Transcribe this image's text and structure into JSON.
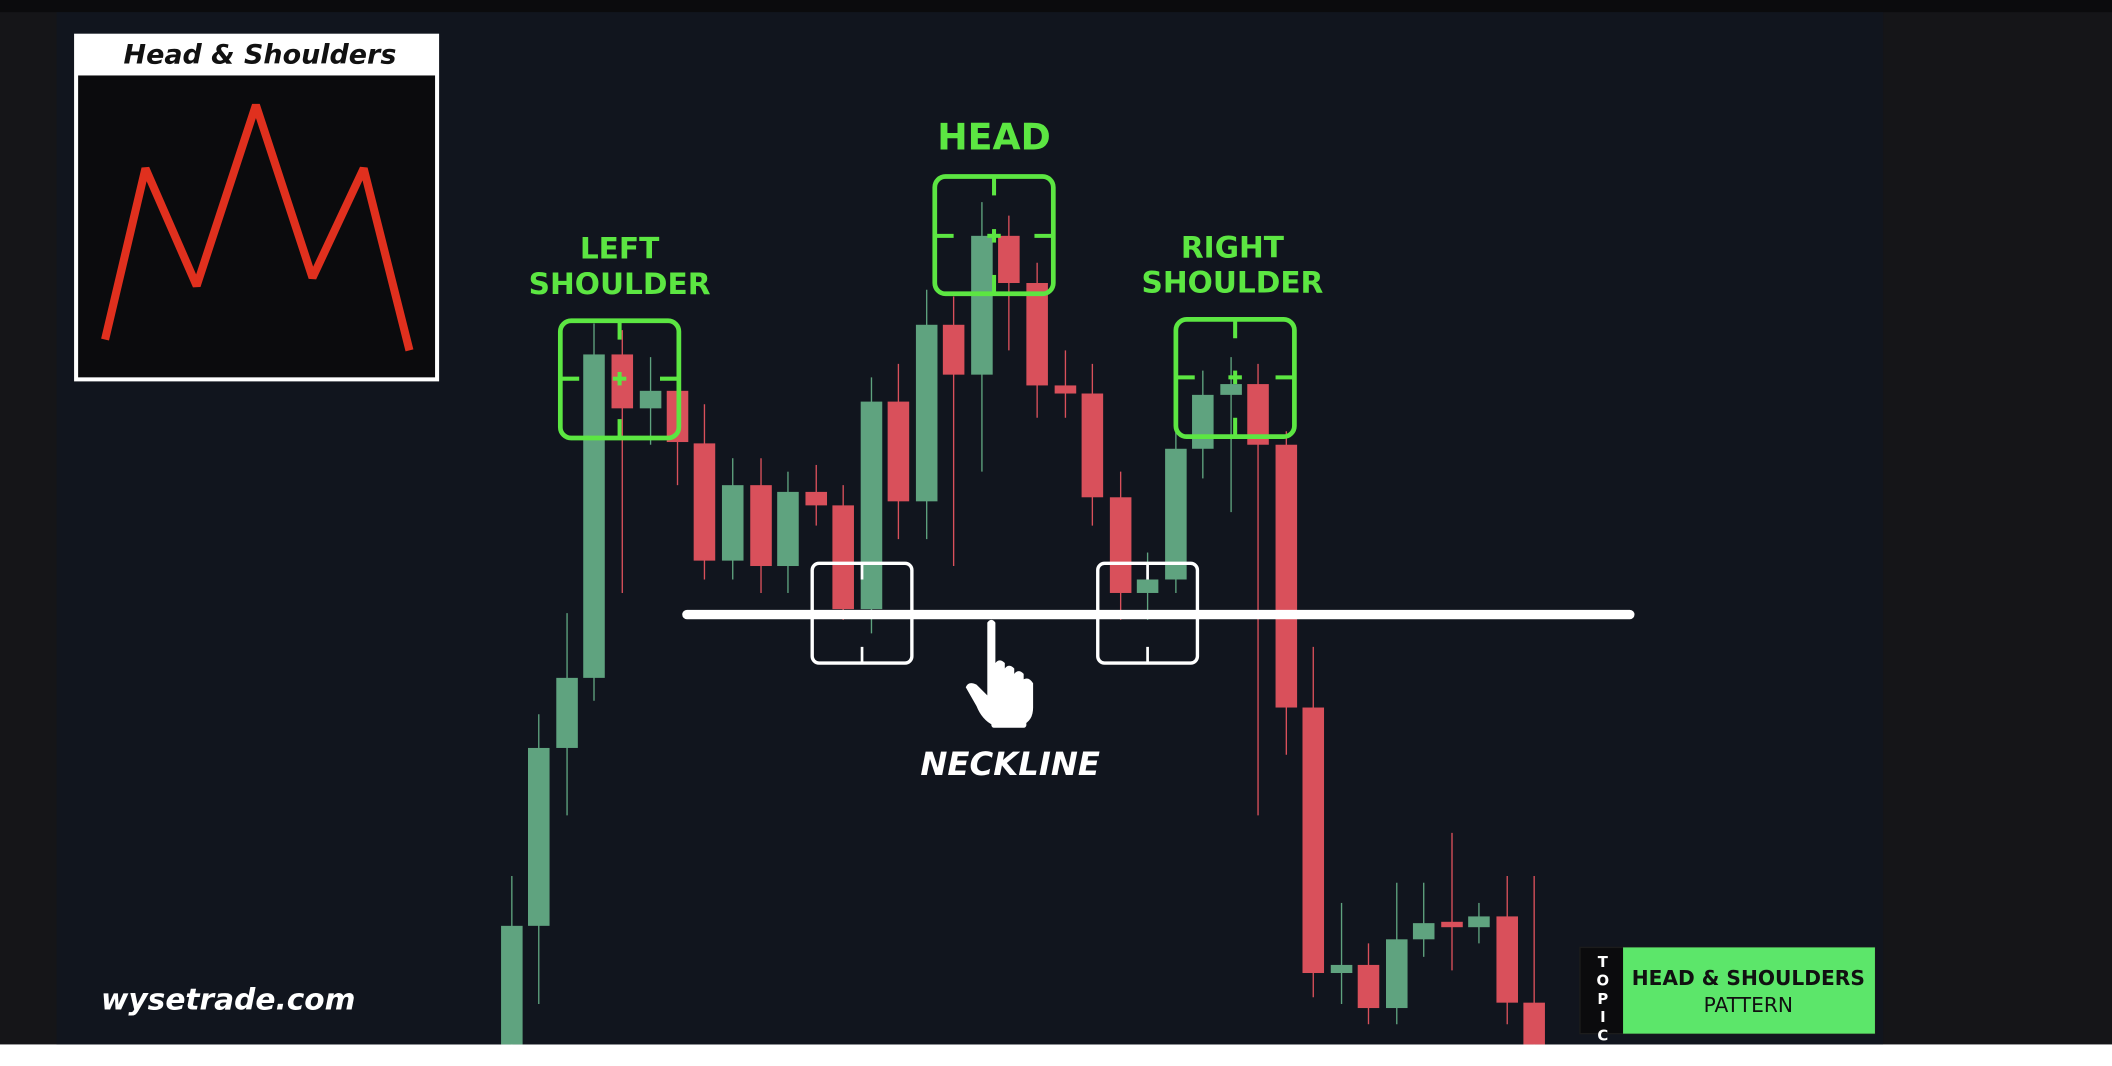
{
  "inset": {
    "title": "Head & Shoulders"
  },
  "labels": {
    "head": "HEAD",
    "left_shoulder": [
      "LEFT",
      "SHOULDER"
    ],
    "right_shoulder": [
      "RIGHT",
      "SHOULDER"
    ],
    "neckline": "NECKLINE"
  },
  "watermark": "wysetrade.com",
  "topic_badge": {
    "tag": "TOPIC",
    "title": [
      "HEAD & SHOULDERS",
      "PATTERN"
    ]
  }
}
